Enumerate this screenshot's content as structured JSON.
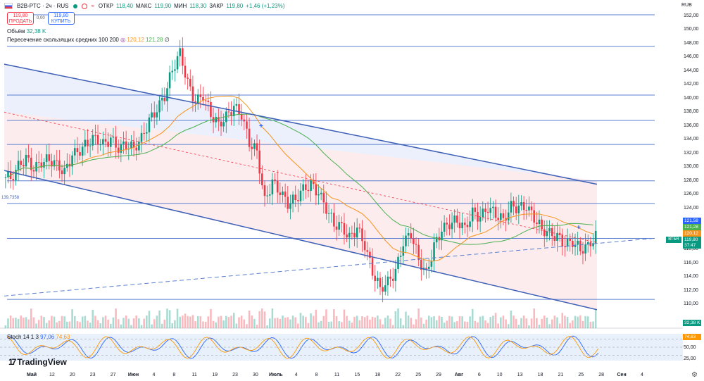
{
  "header": {
    "symbol": "B2B-PTC · 2ч · RUS",
    "ohlc": [
      {
        "label": "ОТКР",
        "value": "118,40"
      },
      {
        "label": "МАКС",
        "value": "119,90"
      },
      {
        "label": "МИН",
        "value": "118,30"
      },
      {
        "label": "ЗАКР",
        "value": "119,80"
      }
    ],
    "change": "+1,46 (+1,23%)",
    "currency": "RUB"
  },
  "trade": {
    "sell_price": "119,80",
    "sell_label": "ПРОДАТЬ",
    "spread": "0,00",
    "buy_price": "119,80",
    "buy_label": "КУПИТЬ"
  },
  "legend": {
    "volume_label": "Объём",
    "volume_value": "32,38 K",
    "ma_label": "Пересечение скользящих средних 100 200",
    "ma_val1": "120,12",
    "ma_val2": "121,28",
    "ma_val3": "∅"
  },
  "stoch": {
    "label": "Stoch 14 1 3",
    "k": "97,06",
    "d": "74,63"
  },
  "brand": "TradingView",
  "y_axis": [
    "152,00",
    "150,00",
    "148,00",
    "146,00",
    "144,00",
    "142,00",
    "140,00",
    "138,00",
    "136,00",
    "134,00",
    "132,00",
    "130,00",
    "128,00",
    "126,00",
    "124,00",
    "122,00",
    "118,00",
    "116,00",
    "114,00",
    "112,00",
    "110,00"
  ],
  "price_tags": {
    "ma2": "121,58",
    "ma3": "121,28",
    "ma1": "120,12",
    "last": "119,80",
    "countdown": "37:47",
    "ticker": "ВТБR",
    "volume": "32,38 K",
    "left_price": "139,7358"
  },
  "stoch_axis": {
    "top": "74,63",
    "mid": "50,00",
    "low": "25,00"
  },
  "x_axis": [
    "Май",
    "12",
    "20",
    "23",
    "27",
    "Июн",
    "4",
    "8",
    "11",
    "19",
    "23",
    "30",
    "Июль",
    "4",
    "8",
    "11",
    "15",
    "18",
    "22",
    "25",
    "29",
    "Авг",
    "6",
    "10",
    "13",
    "18",
    "21",
    "25",
    "28",
    "Сен",
    "4"
  ],
  "colors": {
    "up": "#089981",
    "down": "#f23645",
    "channel": "#3d5fb6",
    "level": "#5b7fd0",
    "ma100": "#f7931a",
    "ma200": "#4caf50",
    "stoch_k": "#2962ff",
    "stoch_d": "#ff9800"
  },
  "chart_data": {
    "type": "candlestick",
    "horizontal_levels": [
      152.2,
      147.6,
      140.5,
      136.8,
      133.3,
      128.0,
      124.7,
      119.6,
      110.7
    ],
    "channel_upper": [
      [
        0,
        145.0
      ],
      [
        56,
        127.5
      ]
    ],
    "channel_lower": [
      [
        0,
        129.5
      ],
      [
        56,
        109.2
      ]
    ],
    "ma_cross_points": [
      136.0,
      121.2
    ],
    "close_series": [
      128.5,
      130.2,
      131.0,
      129.5,
      130.8,
      131.4,
      130.5,
      129.0,
      131.5,
      132.4,
      133.8,
      134.5,
      133.2,
      133.8,
      132.6,
      133.5,
      133.0,
      134.2,
      136.5,
      138.2,
      140.5,
      144.5,
      146.8,
      142.0,
      139.2,
      140.5,
      138.0,
      136.4,
      137.2,
      138.5,
      137.5,
      133.8,
      132.5,
      125.0,
      127.5,
      126.2,
      124.8,
      125.6,
      126.9,
      127.2,
      126.0,
      124.0,
      122.0,
      121.5,
      119.5,
      120.8,
      118.5,
      115.0,
      112.5,
      113.2,
      114.5,
      118.8,
      120.5,
      116.8,
      114.5,
      118.2,
      120.6,
      121.8,
      122.5,
      121.2,
      123.2,
      122.4,
      124.0,
      123.4,
      122.5,
      124.2,
      123.8,
      124.1,
      122.8,
      121.2,
      120.4,
      119.6,
      118.5,
      119.2,
      118.3,
      118.6,
      119.8
    ],
    "stoch_k_last": 97.06,
    "stoch_d_last": 74.63
  }
}
